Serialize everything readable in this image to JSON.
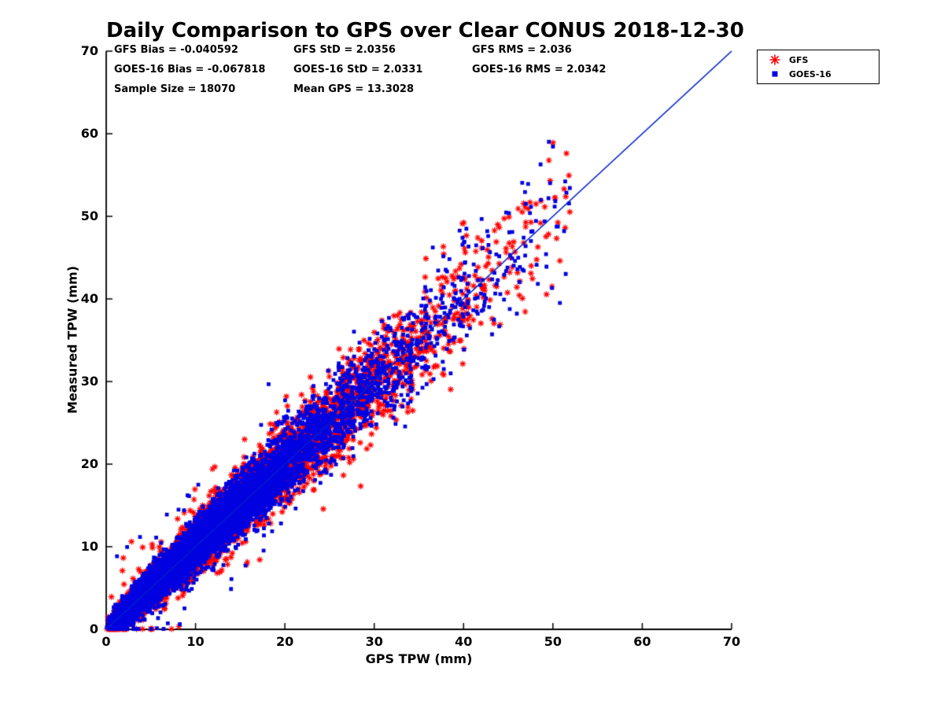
{
  "title": "Daily Comparison to GPS over Clear CONUS 2018-12-30",
  "stats": {
    "gfs_bias": "GFS Bias = -0.040592",
    "gfs_std": "GFS StD = 2.0356",
    "gfs_rms": "GFS RMS = 2.036",
    "goes_bias": "GOES-16 Bias = -0.067818",
    "goes_std": "GOES-16 StD = 2.0331",
    "goes_rms": "GOES-16 RMS = 2.0342",
    "sample_size": "Sample Size = 18070",
    "mean_gps": "Mean GPS = 13.3028"
  },
  "legend": {
    "items": [
      {
        "label": "GFS",
        "marker": "asterisk",
        "color": "#ff0000"
      },
      {
        "label": "GOES-16",
        "marker": "square",
        "color": "#0000e0"
      }
    ]
  },
  "chart_data": {
    "type": "scatter",
    "title": "Daily Comparison to GPS over Clear CONUS 2018-12-30",
    "xlabel": "GPS TPW (mm)",
    "ylabel": "Measured TPW (mm)",
    "xlim": [
      0,
      70
    ],
    "ylim": [
      0,
      70
    ],
    "xticks": [
      0,
      10,
      20,
      30,
      40,
      50,
      60,
      70
    ],
    "yticks": [
      0,
      10,
      20,
      30,
      40,
      50,
      60,
      70
    ],
    "grid": false,
    "legend_position": "top-right-outside",
    "sample_size": 18070,
    "mean_gps": 13.3028,
    "series": [
      {
        "name": "GFS",
        "marker": "asterisk",
        "color": "#ff0000",
        "bias": -0.040592,
        "std": 2.0356,
        "rms": 2.036
      },
      {
        "name": "GOES-16",
        "marker": "square",
        "color": "#0000e0",
        "bias": -0.067818,
        "std": 2.0331,
        "rms": 2.0342
      }
    ],
    "reference_line": {
      "type": "identity",
      "from": [
        0,
        0
      ],
      "to": [
        70,
        70
      ],
      "color": "#0020cc"
    },
    "point_cloud_summary": {
      "description": "Dense paired scatter (18070 samples) of GFS (red asterisks) and GOES-16 (blue squares) measured TPW versus GPS TPW, tightly clustered along the 1:1 reference line",
      "x_observed_range": [
        0,
        52
      ],
      "y_observed_range": [
        0,
        55
      ],
      "densest_region_x": [
        1,
        15
      ],
      "scatter_std_mm": 2.03
    }
  }
}
